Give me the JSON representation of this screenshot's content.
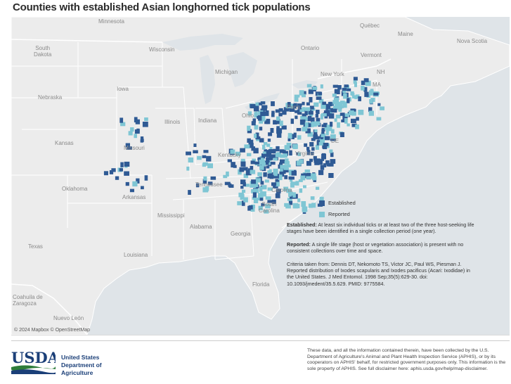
{
  "title": "Counties with established Asian longhorned tick populations",
  "colors": {
    "water": "#dfe4e8",
    "land": "#ececec",
    "border": "#ffffff",
    "established": "#2f5a94",
    "reported": "#7fc6d4"
  },
  "map_labels": {
    "minnesota": "Minnesota",
    "south_dakota": "South\nDakota",
    "wisconsin": "Wisconsin",
    "michigan": "Michigan",
    "nebraska": "Nebraska",
    "iowa": "Iowa",
    "illinois": "Illinois",
    "indiana": "Indiana",
    "ohio": "Ohio",
    "kansas": "Kansas",
    "missouri": "Missouri",
    "kentucky": "Kentucky",
    "oklahoma": "Oklahoma",
    "arkansas": "Arkansas",
    "tennessee": "Tennessee",
    "mississippi": "Mississippi",
    "alabama": "Alabama",
    "georgia": "Georgia",
    "texas": "Texas",
    "louisiana": "Louisiana",
    "florida": "Florida",
    "south_carolina": "South\nCarolina",
    "carolina": "Carolina",
    "virginia": "Virginia",
    "pennsylvania": "Penn",
    "new_york": "New York",
    "vermont": "Vermont",
    "nh": "NH",
    "ma": "MA",
    "maine": "Maine",
    "nova_scotia": "Nova Scotia",
    "quebec": "Québec",
    "ontario": "Ontario",
    "de": "DE",
    "coahuila": "Coahuila de\nZaragoza",
    "nuevo_leon": "Nuevo León"
  },
  "attribution": "© 2024 Mapbox © OpenStreetMap",
  "legend": [
    {
      "label": "Established",
      "color": "#2f5a94"
    },
    {
      "label": "Reported",
      "color": "#7fc6d4"
    }
  ],
  "notes": {
    "established_term": "Established:",
    "established_text": "At least six individual ticks or at least two of the three host-seeking life stages have been identified in a single collection period (one year).",
    "reported_term": "Reported:",
    "reported_text": "A single life stage (host or vegetation association) is present with no consistent collections over time and space.",
    "criteria": "Criteria taken from: Dennis DT, Nekomoto TS, Victor JC, Paul WS, Piesman J. Reported distribution of Ixodes scapularis and Ixodes pacificus (Acari: Ixodidae) in the United States. J Med Entomol. 1998 Sep;35(5):629-30. doi: 10.1093/jmedent/35.5.629. PMID: 9775584."
  },
  "agency": {
    "logo_text": "USDA",
    "line1": "United States",
    "line2": "Department of",
    "line3": "Agriculture"
  },
  "disclaimer": "These data, and all the information contained therein, have been collected by the U.S. Department of Agriculture's Animal and Plant Health Inspection Service (APHIS), or by its cooperators on APHIS' behalf, for restricted government purposes only. This information is the sole property of APHIS. See full disclaimer here: aphis.usda.gov/help/map-disclaimer."
}
